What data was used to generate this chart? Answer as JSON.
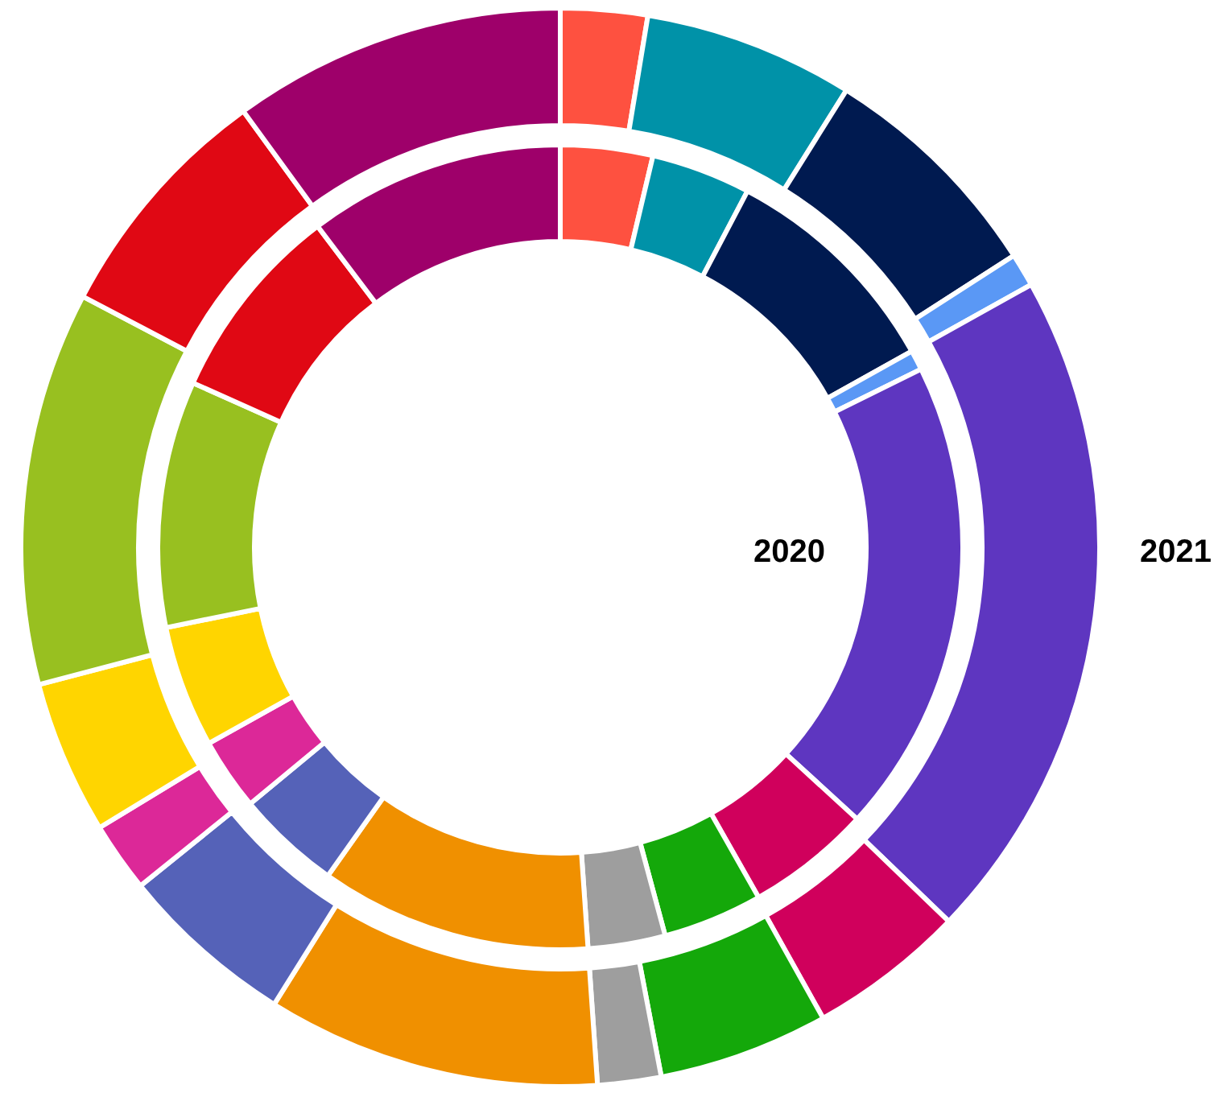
{
  "chart_data": [
    {
      "type": "donut",
      "title": "2020",
      "categories": [
        null,
        null,
        null,
        null,
        null,
        null,
        null,
        null,
        null,
        null,
        null,
        null,
        null,
        null,
        null
      ],
      "colors": [
        "#fe5140",
        "#0092a8",
        "#001a50",
        "#5a98f5",
        "#5e36c0",
        "#d0005c",
        "#14a80a",
        "#9e9e9e",
        "#f09000",
        "#5562b8",
        "#dc2898",
        "#ffd500",
        "#98c020",
        "#e00814",
        "#9e006a"
      ],
      "values": [
        3.7,
        4.0,
        9.2,
        0.8,
        19.1,
        5.0,
        4.0,
        3.1,
        10.9,
        4.2,
        2.9,
        4.9,
        9.9,
        8.0,
        10.3
      ]
    },
    {
      "type": "donut",
      "title": "2021",
      "categories": [
        null,
        null,
        null,
        null,
        null,
        null,
        null,
        null,
        null,
        null,
        null,
        null,
        null,
        null,
        null
      ],
      "colors": [
        "#fe5140",
        "#0092a8",
        "#001a50",
        "#5a98f5",
        "#5e36c0",
        "#d0005c",
        "#14a80a",
        "#9e9e9e",
        "#f09000",
        "#5562b8",
        "#dc2898",
        "#ffd500",
        "#98c020",
        "#e00814",
        "#9e006a"
      ],
      "values": [
        2.6,
        6.3,
        7.0,
        1.0,
        20.3,
        4.7,
        5.1,
        1.9,
        10.0,
        5.3,
        2.1,
        4.6,
        11.8,
        7.3,
        10.0
      ]
    }
  ]
}
